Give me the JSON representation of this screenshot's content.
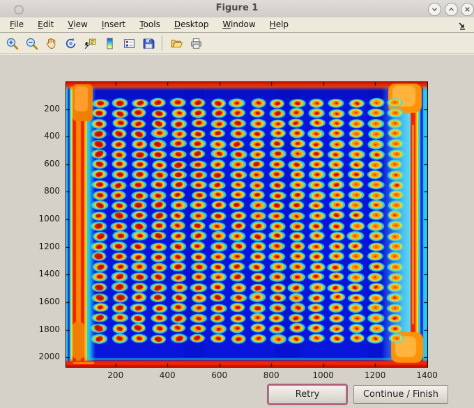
{
  "window": {
    "title": "Figure 1"
  },
  "menubar": {
    "items": [
      "File",
      "Edit",
      "View",
      "Insert",
      "Tools",
      "Desktop",
      "Window",
      "Help"
    ]
  },
  "toolbar": {
    "buttons": [
      "zoom-in",
      "zoom-out",
      "pan",
      "rotate-3d",
      "data-cursor",
      "insert-colorbar",
      "insert-legend",
      "save-figure",
      "open-file",
      "print-figure"
    ]
  },
  "action_buttons": {
    "retry": "Retry",
    "continue_finish": "Continue / Finish"
  },
  "colors": {
    "titlebar_bg": "#d8d5d0",
    "menubar_bg": "#edeadb",
    "figure_bg": "#d5d1c8",
    "retry_focus_ring": "#b25f7f"
  },
  "chart_data": {
    "type": "heatmap",
    "title": "",
    "xlabel": "",
    "ylabel": "",
    "xlim": [
      10,
      1401
    ],
    "ylim": [
      5,
      2070
    ],
    "xticks": [
      200,
      400,
      600,
      800,
      1000,
      1200,
      1400
    ],
    "yticks": [
      200,
      400,
      600,
      800,
      1000,
      1200,
      1400,
      1600,
      1800,
      2000
    ],
    "grid_on": false,
    "colormap": "jet",
    "description": "Jet-pseudocolor intensity image of a 384-well microplate scan: 24 rows x 16 columns of elliptical spots (red/orange centers, yellow bodies, cyan halos) on a deep blue background, saturated red bands along all four plate edges and orange hot spots in the corners",
    "spot_grid": {
      "cols": 16,
      "rows": 24,
      "x_start": 139,
      "x_step": 76,
      "y_start": 156,
      "y_step": 74.3,
      "spot_rx": 28,
      "spot_ry": 32
    },
    "colors": {
      "background": "#0a15dc",
      "halo_cyan": "#3ce4da",
      "body_yellow": "#ffd41c",
      "ring_orange": "#ff8c00",
      "center_red": "#dc1602",
      "center_dark_red": "#b40e00",
      "edge_red": "#ee2602",
      "edge_orange": "#ff870a",
      "corner_orange": "#ff9208",
      "right_band_cyan": "#5ddcf2"
    },
    "seed": 20
  }
}
